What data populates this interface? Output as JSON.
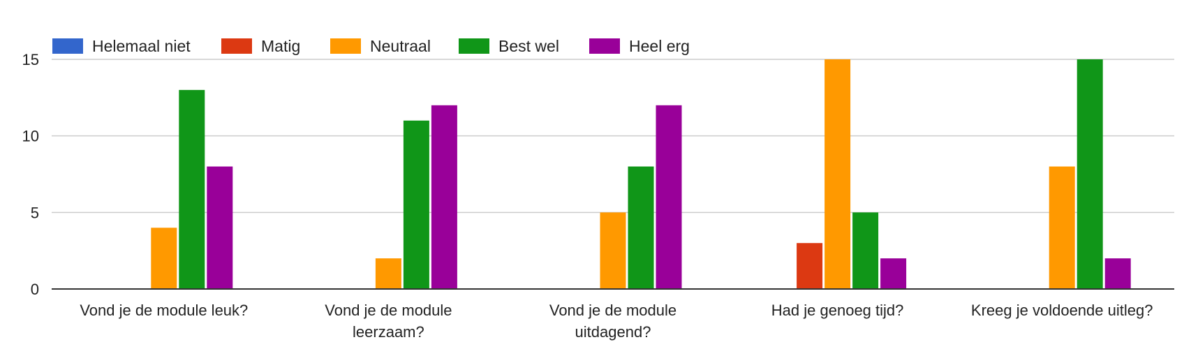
{
  "chart_data": {
    "type": "bar",
    "title": "",
    "xlabel": "",
    "ylabel": "",
    "ylim": [
      0,
      15
    ],
    "yticks": [
      0,
      5,
      10,
      15
    ],
    "grid": true,
    "legend_position": "top",
    "categories": [
      [
        "Vond je de module leuk?"
      ],
      [
        "Vond je de module",
        "leerzaam?"
      ],
      [
        "Vond je de module",
        "uitdagend?"
      ],
      [
        "Had je genoeg tijd?"
      ],
      [
        "Kreeg je voldoende uitleg?"
      ]
    ],
    "series": [
      {
        "name": "Helemaal niet",
        "color": "#3366cc",
        "values": [
          0,
          0,
          0,
          0,
          0
        ]
      },
      {
        "name": "Matig",
        "color": "#dc3912",
        "values": [
          0,
          0,
          0,
          3,
          0
        ]
      },
      {
        "name": "Neutraal",
        "color": "#ff9900",
        "values": [
          4,
          2,
          5,
          15,
          8
        ]
      },
      {
        "name": "Best wel",
        "color": "#109618",
        "values": [
          13,
          11,
          8,
          5,
          15
        ]
      },
      {
        "name": "Heel erg",
        "color": "#990099",
        "values": [
          8,
          12,
          12,
          2,
          2
        ]
      }
    ]
  }
}
